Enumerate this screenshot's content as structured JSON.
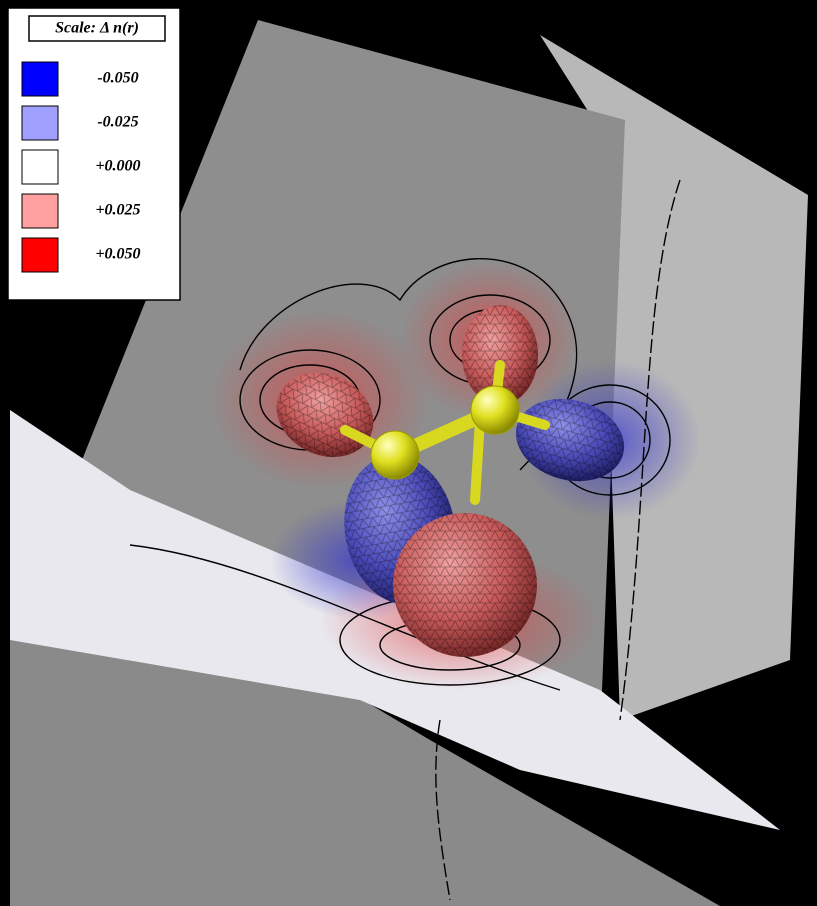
{
  "legend": {
    "title": "Scale:  Δ n(r)",
    "items": [
      {
        "label": "-0.050",
        "color": "#0000ff"
      },
      {
        "label": "-0.025",
        "color": "#a0a0ff"
      },
      {
        "label": "+0.000",
        "color": "#ffffff"
      },
      {
        "label": "+0.025",
        "color": "#ffa0a0"
      },
      {
        "label": "+0.050",
        "color": "#ff0000"
      }
    ]
  }
}
